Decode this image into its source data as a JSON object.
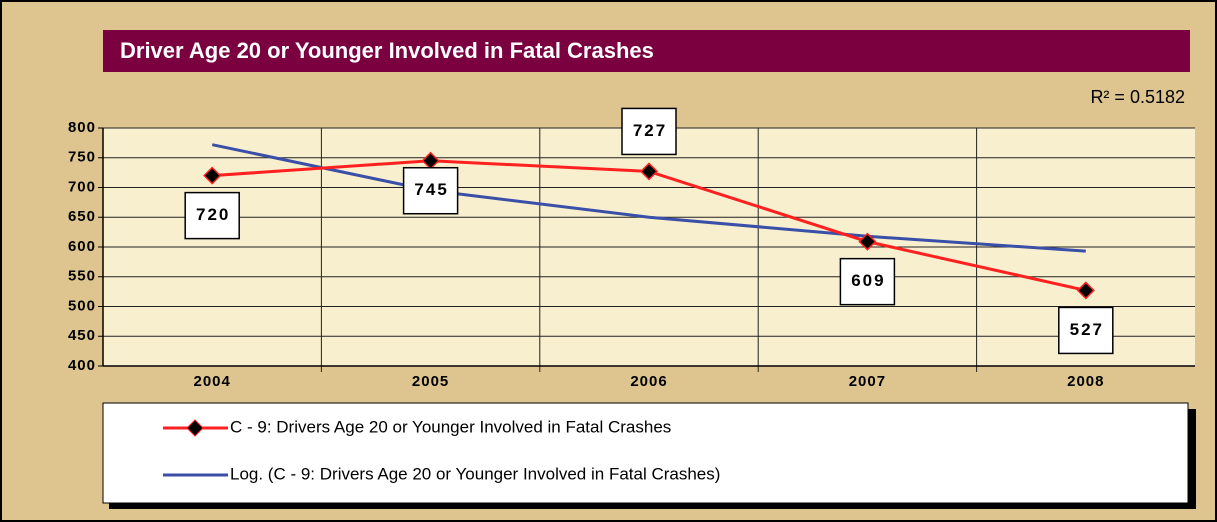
{
  "chart_data": {
    "type": "line",
    "title": "Driver Age 20 or Younger Involved in Fatal Crashes",
    "annotation": "R² = 0.5182",
    "categories": [
      "2004",
      "2005",
      "2006",
      "2007",
      "2008"
    ],
    "series": [
      {
        "name": "C - 9: Drivers Age 20 or Younger Involved in Fatal Crashes",
        "color": "#ff2020",
        "values": [
          720,
          745,
          727,
          609,
          527
        ],
        "marker": "diamond",
        "data_labels": true
      },
      {
        "name": "Log. (C - 9: Drivers Age 20 or Younger Involved in Fatal Crashes)",
        "color": "#3a4fa8",
        "values": [
          772,
          695,
          650,
          618,
          593
        ]
      }
    ],
    "ylim": [
      400,
      800
    ],
    "yticks": [
      400,
      450,
      500,
      550,
      600,
      650,
      700,
      750,
      800
    ],
    "grid": true
  }
}
